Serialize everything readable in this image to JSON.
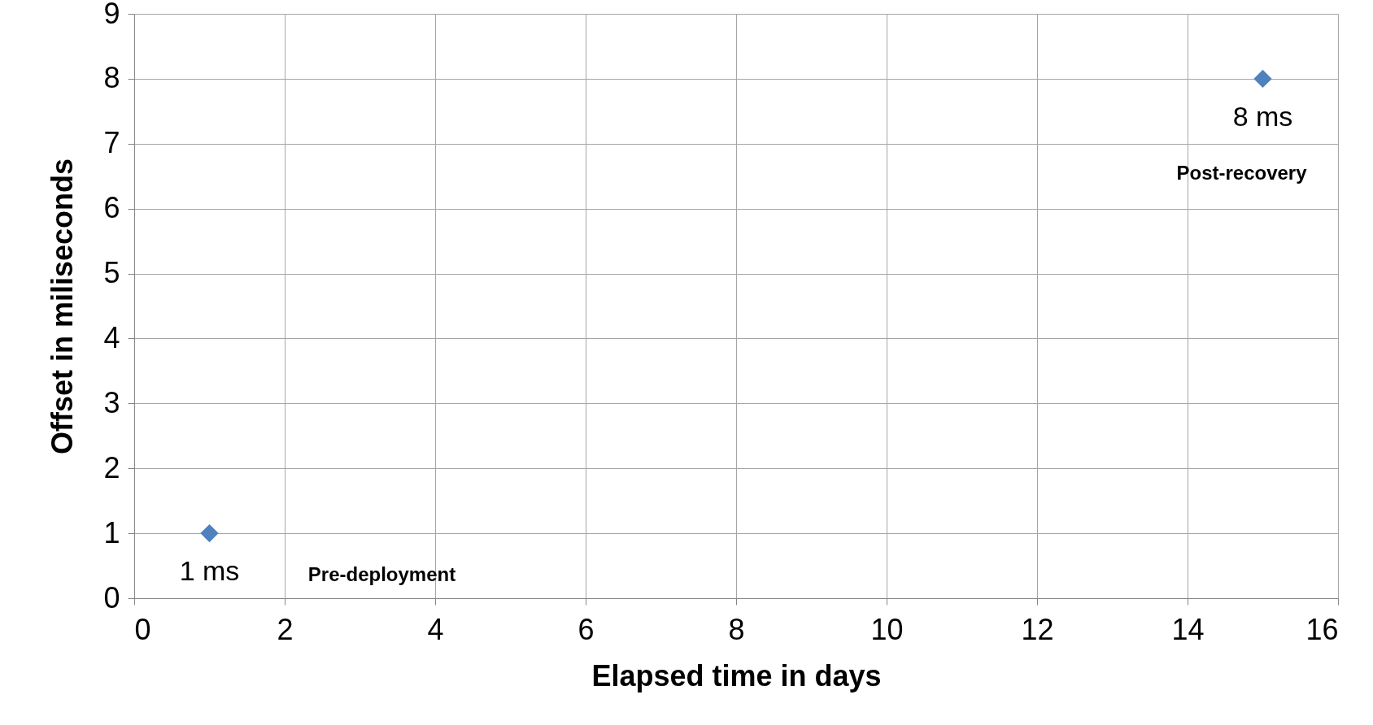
{
  "chart_data": {
    "type": "scatter",
    "xlabel": "Elapsed time in days",
    "ylabel": "Offset in miliseconds",
    "x": [
      1,
      15
    ],
    "series": [
      {
        "color": "#4f81bd",
        "values": [
          1,
          8
        ],
        "value_labels": [
          "1 ms",
          "8 ms"
        ]
      }
    ],
    "xlim": [
      0,
      16
    ],
    "xticks": [
      0,
      2,
      4,
      6,
      8,
      10,
      12,
      14,
      16
    ],
    "ylim": [
      0,
      9
    ],
    "yticks": [
      0,
      1,
      2,
      3,
      4,
      5,
      6,
      7,
      8,
      9
    ],
    "grid": true,
    "marker": "diamond",
    "annotations": [
      "Pre-deployment",
      "Post-recovery"
    ]
  }
}
